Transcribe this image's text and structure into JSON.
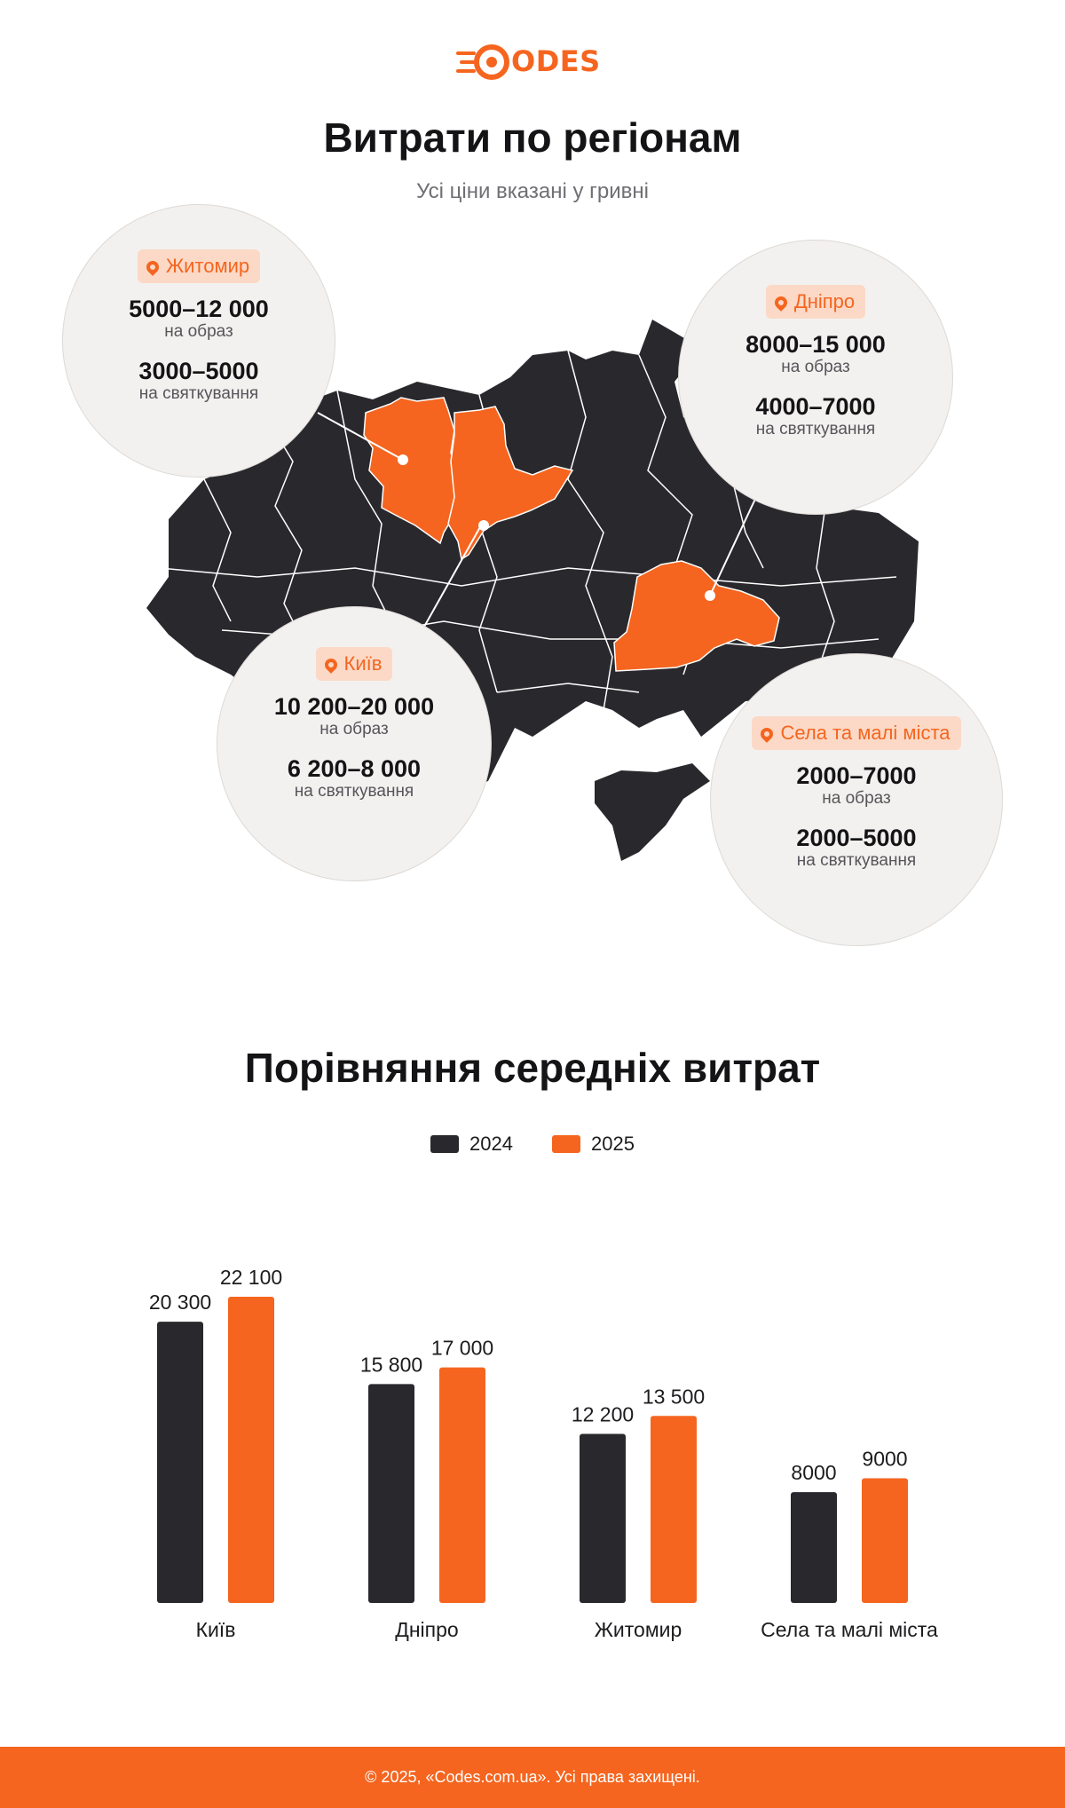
{
  "brand": {
    "logo_text": "ODES",
    "accent_color": "#f5651f",
    "dark_color": "#29282d"
  },
  "header": {
    "title": "Витрати по регіонам",
    "subtitle": "Усі ціни вказані у гривні"
  },
  "regions": [
    {
      "name": "Житомир",
      "icon": "location-pin-icon",
      "price_image": "5000–12 000",
      "price_image_unit": "на образ",
      "price_event": "3000–5000",
      "price_event_unit": "на святкування"
    },
    {
      "name": "Дніпро",
      "icon": "location-pin-icon",
      "price_image": "8000–15 000",
      "price_image_unit": "на образ",
      "price_event": "4000–7000",
      "price_event_unit": "на святкування"
    },
    {
      "name": "Київ",
      "icon": "location-pin-icon",
      "price_image": "10 200–20 000",
      "price_image_unit": "на образ",
      "price_event": "6 200–8 000",
      "price_event_unit": "на святкування"
    },
    {
      "name": "Села та малі міста",
      "icon": "location-pin-icon",
      "price_image": "2000–7000",
      "price_image_unit": "на образ",
      "price_event": "2000–5000",
      "price_event_unit": "на святкування"
    }
  ],
  "comparison": {
    "title": "Порівняння середніх витрат"
  },
  "chart_data": {
    "type": "bar",
    "title": "Порівняння середніх витрат",
    "categories": [
      "Київ",
      "Дніпро",
      "Житомир",
      "Села та малі міста"
    ],
    "series": [
      {
        "name": "2024",
        "color": "#29282d",
        "values": [
          20300,
          15800,
          12200,
          8000
        ],
        "labels": [
          "20 300",
          "15 800",
          "12 200",
          "8000"
        ]
      },
      {
        "name": "2025",
        "color": "#f5651f",
        "values": [
          22100,
          17000,
          13500,
          9000
        ],
        "labels": [
          "22 100",
          "17 000",
          "13 500",
          "9000"
        ]
      }
    ],
    "ylim": [
      0,
      24000
    ],
    "grid": false,
    "legend_position": "top-center"
  },
  "footer": {
    "text": "© 2025, «Codes.com.ua». Усі права захищені."
  }
}
